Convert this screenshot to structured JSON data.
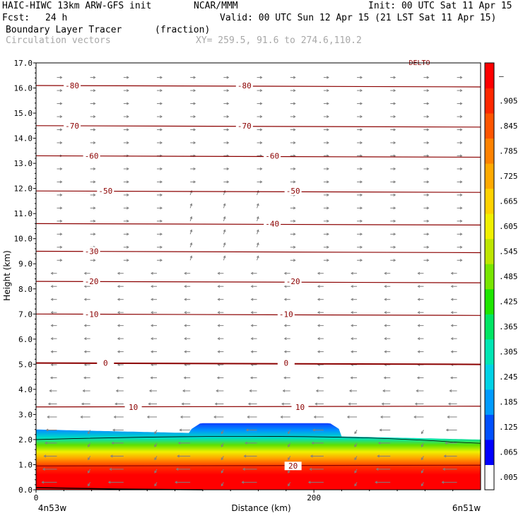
{
  "header": {
    "model": "HAIC-HIWC 13km ARW-GFS init",
    "org": "NCAR/MMM",
    "init": "Init: 00 UTC Sat 11 Apr 15",
    "fcst_label": "Fcst:",
    "fcst_value": "24 h",
    "valid": "Valid: 00 UTC Sun 12 Apr 15 (21 LST Sat 11 Apr 15)",
    "field": "Boundary Layer Tracer",
    "units": "(fraction)",
    "vectors": "Circulation vectors",
    "xy": "XY= 259.5, 91.6 to 274.6,110.2"
  },
  "chart_data": {
    "type": "heatmap",
    "title": "Boundary Layer Tracer (fraction)",
    "ylabel": "Height (km)",
    "xlabel": "Distance (km)",
    "xlim": [
      0,
      320
    ],
    "ylim": [
      0,
      17
    ],
    "y_ticks": [
      "0.0",
      "1.0",
      "2.0",
      "3.0",
      "4.0",
      "5.0",
      "6.0",
      "7.0",
      "8.0",
      "9.0",
      "10.0",
      "11.0",
      "12.0",
      "13.0",
      "14.0",
      "15.0",
      "16.0",
      "17.0"
    ],
    "x_ticks": [
      {
        "value": 0,
        "label": "0"
      },
      {
        "value": 200,
        "label": "200"
      }
    ],
    "x_endpoints": [
      "4n53w",
      "6n51w"
    ],
    "colorbar": {
      "labels": [
        ".005",
        ".065",
        ".125",
        ".185",
        ".245",
        ".305",
        ".365",
        ".425",
        ".485",
        ".545",
        ".605",
        ".665",
        ".725",
        ".785",
        ".845",
        ".905",
        "–"
      ],
      "colors": [
        "#ffffff",
        "#0000ff",
        "#0050ff",
        "#009bff",
        "#00d2e6",
        "#00e6b4",
        "#00e664",
        "#1ee600",
        "#78e600",
        "#bee600",
        "#f0f000",
        "#ffd200",
        "#ffaa00",
        "#ff8200",
        "#ff5500",
        "#ff2800",
        "#ff0000"
      ]
    },
    "tracer_layer": {
      "description_color_bottom": "#ff0000",
      "top_km_left": 2.4,
      "top_km_bulge": 2.65,
      "top_km_right": 2.0
    },
    "isotherms_C": [
      {
        "value": -80,
        "label": "-80",
        "height_km": 16.1
      },
      {
        "value": -70,
        "label": "-70",
        "height_km": 14.5
      },
      {
        "value": -60,
        "label": "-60",
        "height_km": 13.3
      },
      {
        "value": -50,
        "label": "-50",
        "height_km": 11.9
      },
      {
        "value": -40,
        "label": "-40",
        "height_km": 10.6
      },
      {
        "value": -30,
        "label": "-30",
        "height_km": 9.5
      },
      {
        "value": -20,
        "label": "-20",
        "height_km": 8.3
      },
      {
        "value": -10,
        "label": "-10",
        "height_km": 7.0
      },
      {
        "value": 0,
        "label": "0",
        "height_km": 5.05
      },
      {
        "value": 10,
        "label": "10",
        "height_km": 3.3
      },
      {
        "value": 20,
        "label": "20",
        "height_km": 0.95
      }
    ],
    "top_partial_label": "DELTO"
  }
}
